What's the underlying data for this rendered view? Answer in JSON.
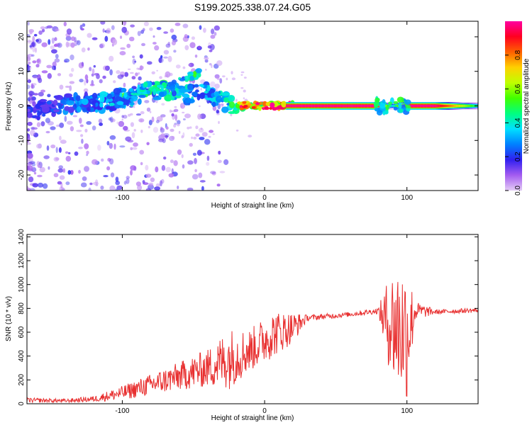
{
  "chart_data": [
    {
      "type": "heatmap",
      "title": "S199.2025.338.07.24.G05",
      "xlabel": "Height of straight line (km)",
      "ylabel": "Frequency (Hz)",
      "xlim": [
        -167,
        150
      ],
      "ylim": [
        -24.5,
        24.5
      ],
      "xticks": [
        -100,
        0,
        100
      ],
      "yticks": [
        -20,
        -10,
        0,
        10,
        20
      ],
      "colorbar": {
        "label": "Normalized spectral amplitude",
        "range": [
          0.0,
          1.0
        ],
        "ticks": [
          0.0,
          0.2,
          0.4,
          0.6,
          0.8
        ],
        "colors": [
          "#e4ccf6",
          "#a45cf0",
          "#3020f0",
          "#0080ff",
          "#00e0ff",
          "#00ff80",
          "#40ff00",
          "#c0ff00",
          "#ffd000",
          "#ff6000",
          "#ff0020",
          "#ff00a0"
        ]
      },
      "ridge": [
        {
          "x": -167,
          "f": -2,
          "amp": 0.2
        },
        {
          "x": -150,
          "f": 0,
          "amp": 0.25
        },
        {
          "x": -130,
          "f": 1,
          "amp": 0.3
        },
        {
          "x": -110,
          "f": 1,
          "amp": 0.35
        },
        {
          "x": -90,
          "f": 3.5,
          "amp": 0.4
        },
        {
          "x": -70,
          "f": 5,
          "amp": 0.45
        },
        {
          "x": -60,
          "f": 3,
          "amp": 0.4
        },
        {
          "x": -40,
          "f": 4,
          "amp": 0.35
        },
        {
          "x": -30,
          "f": 1.5,
          "amp": 0.4
        },
        {
          "x": -20,
          "f": 0,
          "amp": 0.6
        },
        {
          "x": -10,
          "f": 0,
          "amp": 0.85
        },
        {
          "x": 0,
          "f": 0,
          "amp": 0.95
        },
        {
          "x": 20,
          "f": 0,
          "amp": 1.0
        },
        {
          "x": 78,
          "f": 0,
          "amp": 1.0
        },
        {
          "x": 90,
          "f": 0,
          "amp": 0.35
        },
        {
          "x": 100,
          "f": 0,
          "amp": 1.0
        },
        {
          "x": 120,
          "f": 0,
          "amp": 1.0
        },
        {
          "x": 150,
          "f": 0,
          "amp": 0.45
        }
      ],
      "upper_branch": [
        {
          "x": -100,
          "f": 2
        },
        {
          "x": -80,
          "f": 4.5
        },
        {
          "x": -60,
          "f": 7.5
        },
        {
          "x": -45,
          "f": 9.5
        }
      ]
    },
    {
      "type": "line",
      "title": "",
      "xlabel": "Height of straight line (km)",
      "ylabel": "SNR (10 * v/v)",
      "xlim": [
        -167,
        150
      ],
      "ylim": [
        0,
        1420
      ],
      "xticks": [
        -100,
        0,
        100
      ],
      "yticks": [
        0,
        200,
        400,
        600,
        800,
        1000,
        1200,
        1400
      ],
      "line_color": "#e83030",
      "envelope": [
        {
          "x": -167,
          "mean": 30,
          "noise": 20
        },
        {
          "x": -140,
          "mean": 25,
          "noise": 15
        },
        {
          "x": -120,
          "mean": 40,
          "noise": 25
        },
        {
          "x": -100,
          "mean": 90,
          "noise": 60
        },
        {
          "x": -80,
          "mean": 160,
          "noise": 90
        },
        {
          "x": -60,
          "mean": 230,
          "noise": 120
        },
        {
          "x": -40,
          "mean": 300,
          "noise": 160
        },
        {
          "x": -25,
          "mean": 380,
          "noise": 260
        },
        {
          "x": -10,
          "mean": 450,
          "noise": 180
        },
        {
          "x": 5,
          "mean": 580,
          "noise": 200
        },
        {
          "x": 20,
          "mean": 640,
          "noise": 130
        },
        {
          "x": 30,
          "mean": 720,
          "noise": 25
        },
        {
          "x": 60,
          "mean": 750,
          "noise": 20
        },
        {
          "x": 80,
          "mean": 780,
          "noise": 25
        },
        {
          "x": 85,
          "mean": 700,
          "noise": 300
        },
        {
          "x": 92,
          "mean": 650,
          "noise": 550
        },
        {
          "x": 100,
          "mean": 600,
          "noise": 580
        },
        {
          "x": 106,
          "mean": 780,
          "noise": 80
        },
        {
          "x": 120,
          "mean": 770,
          "noise": 20
        },
        {
          "x": 150,
          "mean": 785,
          "noise": 20
        }
      ]
    }
  ]
}
